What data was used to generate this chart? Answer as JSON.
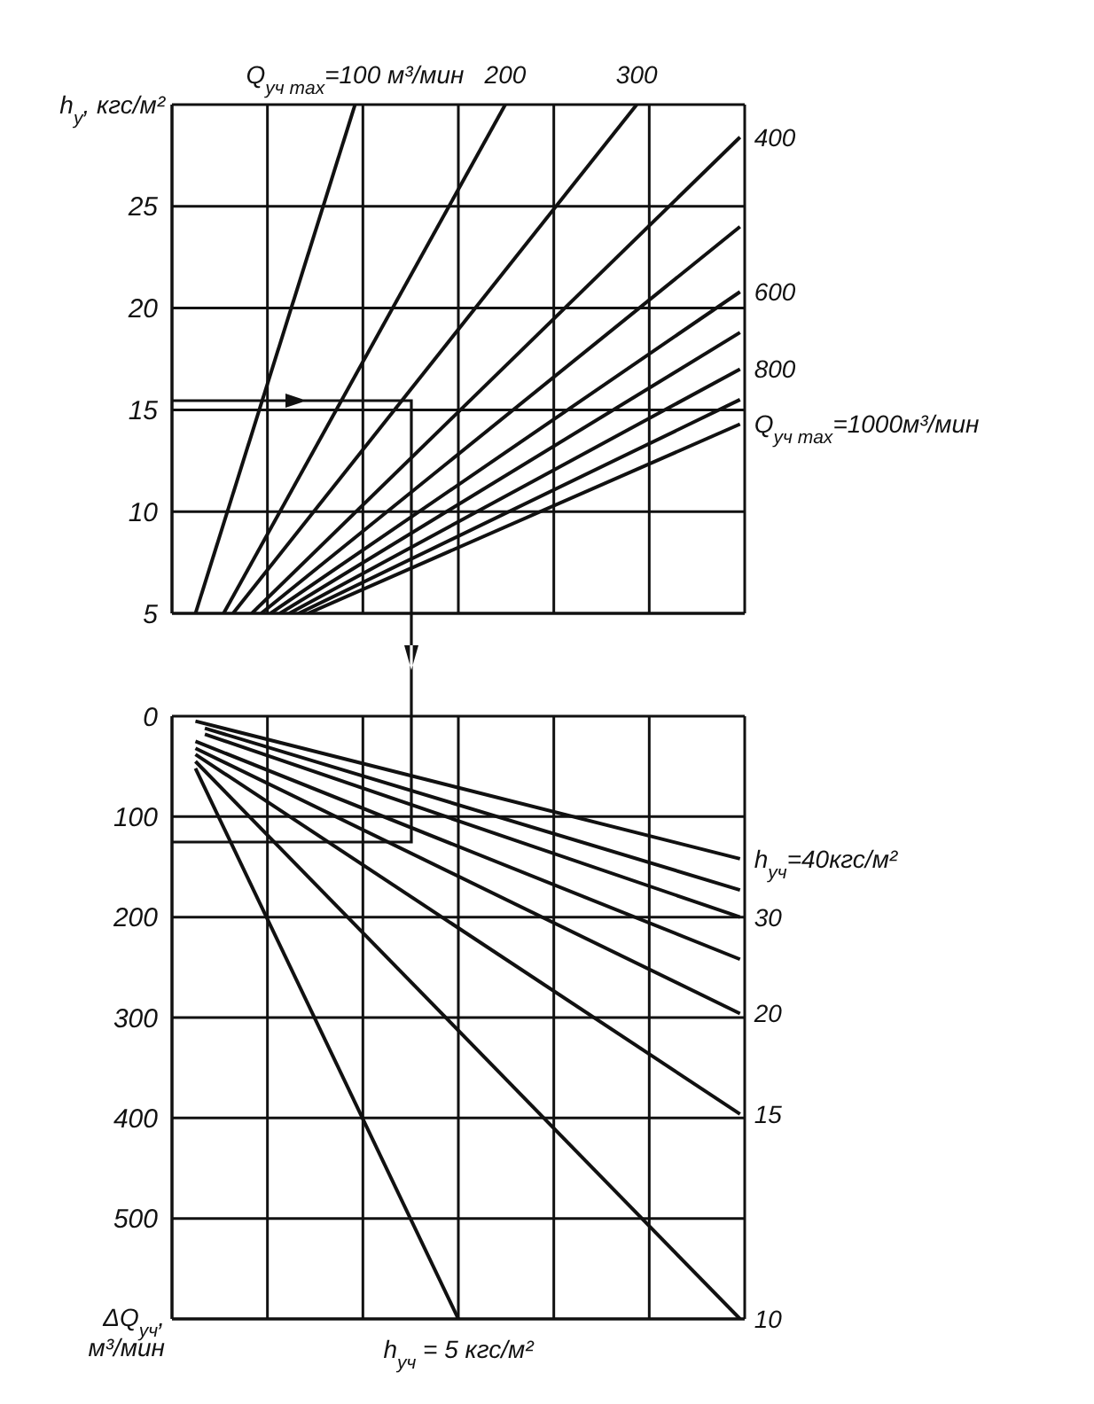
{
  "chart_data": [
    {
      "type": "line",
      "ylabel": "h$_{у}$, кгс/м²",
      "categories": [
        null,
        null,
        null,
        null,
        null,
        null,
        null,
        null,
        null,
        null,
        null,
        null,
        null,
        null,
        null,
        null,
        null,
        null,
        null,
        null,
        null,
        null,
        null,
        null,
        null,
        null,
        null,
        null,
        null,
        null,
        null,
        null,
        null,
        null,
        null,
        null,
        null,
        null,
        null,
        null,
        null,
        null,
        null,
        null,
        null,
        null,
        null,
        null,
        null,
        null,
        null,
        null,
        null,
        null,
        null,
        null,
        null,
        null,
        null,
        null,
        null
      ],
      "ylim": [
        5,
        30
      ],
      "yticks": [
        5,
        10,
        15,
        20,
        25
      ],
      "tick_labels": "y",
      "grid": true,
      "marker": "none",
      "line_style": "solid",
      "series": [
        {
          "name": "Q$_{уч max}$=100 м³/мин",
          "color": "#111111",
          "values": [
            null,
            null,
            5,
            null,
            null,
            null,
            null,
            null,
            null,
            null,
            null,
            null,
            null,
            null,
            null,
            null,
            null,
            null,
            null,
            30,
            null,
            null,
            null,
            null,
            null,
            null,
            null,
            null,
            null,
            null,
            null,
            null,
            null,
            null,
            null,
            null,
            null,
            null,
            null,
            null,
            null,
            null,
            null,
            null,
            null,
            null,
            null,
            null,
            null,
            null,
            null,
            null,
            null,
            null,
            null,
            null,
            null,
            null,
            null,
            null,
            null
          ]
        },
        {
          "name": "200",
          "color": "#111111",
          "values": [
            null,
            null,
            null,
            null,
            null,
            5,
            null,
            null,
            null,
            null,
            null,
            null,
            null,
            null,
            null,
            null,
            null,
            null,
            null,
            null,
            null,
            null,
            null,
            null,
            null,
            null,
            null,
            null,
            null,
            null,
            null,
            null,
            null,
            null,
            null,
            30,
            null,
            null,
            null,
            null,
            null,
            null,
            null,
            null,
            null,
            null,
            null,
            null,
            null,
            null,
            null,
            null,
            null,
            null,
            null,
            null,
            null,
            null,
            null,
            null,
            null
          ]
        },
        {
          "name": "300",
          "color": "#111111",
          "values": [
            null,
            null,
            null,
            null,
            null,
            null,
            5,
            null,
            null,
            null,
            null,
            null,
            null,
            null,
            null,
            null,
            null,
            null,
            null,
            null,
            null,
            null,
            null,
            null,
            null,
            null,
            null,
            null,
            null,
            null,
            null,
            null,
            null,
            null,
            null,
            null,
            null,
            null,
            null,
            null,
            null,
            null,
            null,
            null,
            null,
            null,
            null,
            null,
            null,
            30,
            null,
            null,
            null,
            null,
            null,
            null,
            null,
            null,
            null,
            null,
            null
          ]
        },
        {
          "name": "400",
          "color": "#111111",
          "values": [
            null,
            null,
            null,
            null,
            null,
            null,
            null,
            null,
            5,
            null,
            null,
            null,
            null,
            null,
            null,
            null,
            null,
            null,
            null,
            null,
            null,
            null,
            null,
            null,
            null,
            null,
            null,
            null,
            null,
            null,
            null,
            null,
            null,
            null,
            null,
            null,
            null,
            null,
            null,
            null,
            null,
            null,
            null,
            null,
            null,
            null,
            null,
            null,
            null,
            null,
            null,
            null,
            null,
            null,
            null,
            null,
            null,
            null,
            null,
            null,
            28.4
          ]
        },
        {
          "color": "#111111",
          "values": [
            null,
            null,
            null,
            null,
            null,
            null,
            null,
            null,
            null,
            5,
            null,
            null,
            null,
            null,
            null,
            null,
            null,
            null,
            null,
            null,
            null,
            null,
            null,
            null,
            null,
            null,
            null,
            null,
            null,
            null,
            null,
            null,
            null,
            null,
            null,
            null,
            null,
            null,
            null,
            null,
            null,
            null,
            null,
            null,
            null,
            null,
            null,
            null,
            null,
            null,
            null,
            null,
            null,
            null,
            null,
            null,
            null,
            null,
            null,
            null,
            24
          ]
        },
        {
          "name": "600",
          "color": "#111111",
          "values": [
            null,
            null,
            null,
            null,
            null,
            null,
            null,
            null,
            null,
            null,
            5,
            null,
            null,
            null,
            null,
            null,
            null,
            null,
            null,
            null,
            null,
            null,
            null,
            null,
            null,
            null,
            null,
            null,
            null,
            null,
            null,
            null,
            null,
            null,
            null,
            null,
            null,
            null,
            null,
            null,
            null,
            null,
            null,
            null,
            null,
            null,
            null,
            null,
            null,
            null,
            null,
            null,
            null,
            null,
            null,
            null,
            null,
            null,
            null,
            null,
            20.8
          ]
        },
        {
          "color": "#111111",
          "values": [
            null,
            null,
            null,
            null,
            null,
            null,
            null,
            null,
            null,
            null,
            null,
            5,
            null,
            null,
            null,
            null,
            null,
            null,
            null,
            null,
            null,
            null,
            null,
            null,
            null,
            null,
            null,
            null,
            null,
            null,
            null,
            null,
            null,
            null,
            null,
            null,
            null,
            null,
            null,
            null,
            null,
            null,
            null,
            null,
            null,
            null,
            null,
            null,
            null,
            null,
            null,
            null,
            null,
            null,
            null,
            null,
            null,
            null,
            null,
            null,
            18.8
          ]
        },
        {
          "name": "800",
          "color": "#111111",
          "values": [
            null,
            null,
            null,
            null,
            null,
            null,
            null,
            null,
            null,
            null,
            null,
            null,
            5,
            null,
            null,
            null,
            null,
            null,
            null,
            null,
            null,
            null,
            null,
            null,
            null,
            null,
            null,
            null,
            null,
            null,
            null,
            null,
            null,
            null,
            null,
            null,
            null,
            null,
            null,
            null,
            null,
            null,
            null,
            null,
            null,
            null,
            null,
            null,
            null,
            null,
            null,
            null,
            null,
            null,
            null,
            null,
            null,
            null,
            null,
            null,
            17
          ]
        },
        {
          "color": "#111111",
          "values": [
            null,
            null,
            null,
            null,
            null,
            null,
            null,
            null,
            null,
            null,
            null,
            null,
            null,
            5,
            null,
            null,
            null,
            null,
            null,
            null,
            null,
            null,
            null,
            null,
            null,
            null,
            null,
            null,
            null,
            null,
            null,
            null,
            null,
            null,
            null,
            null,
            null,
            null,
            null,
            null,
            null,
            null,
            null,
            null,
            null,
            null,
            null,
            null,
            null,
            null,
            null,
            null,
            null,
            null,
            null,
            null,
            null,
            null,
            null,
            null,
            15.5
          ]
        },
        {
          "name": "Q$_{уч max}$=1000м³/мин",
          "color": "#111111",
          "values": [
            null,
            null,
            null,
            null,
            null,
            null,
            null,
            null,
            null,
            null,
            null,
            null,
            null,
            null,
            5,
            null,
            null,
            null,
            null,
            null,
            null,
            null,
            null,
            null,
            null,
            null,
            null,
            null,
            null,
            null,
            null,
            null,
            null,
            null,
            null,
            null,
            null,
            null,
            null,
            null,
            null,
            null,
            null,
            null,
            null,
            null,
            null,
            null,
            null,
            null,
            null,
            null,
            null,
            null,
            null,
            null,
            null,
            null,
            null,
            null,
            14.3
          ]
        }
      ]
    },
    {
      "type": "line",
      "ylabel": "ΔQ$_{уч}$, м³/мин",
      "categories": [
        null,
        null,
        null,
        null,
        null,
        null,
        null,
        null,
        null,
        null,
        null,
        null,
        null,
        null,
        null,
        null,
        null,
        null,
        null,
        null,
        null,
        null,
        null,
        null,
        null,
        null,
        null,
        null,
        null,
        null,
        null,
        null,
        null,
        null,
        null,
        null,
        null,
        null,
        null,
        null,
        null,
        null,
        null,
        null,
        null,
        null,
        null,
        null,
        null,
        null,
        null,
        null,
        null,
        null,
        null,
        null,
        null,
        null,
        null,
        null,
        null
      ],
      "ylim": [
        600,
        0
      ],
      "yticks": [
        0,
        100,
        200,
        300,
        400,
        500
      ],
      "tick_labels": "y",
      "grid": true,
      "marker": "none",
      "line_style": "solid",
      "series": [
        {
          "name": "h$_{уч}$=40кгс/м²",
          "color": "#111111",
          "values": [
            null,
            null,
            5,
            null,
            null,
            null,
            null,
            null,
            null,
            null,
            null,
            null,
            null,
            null,
            null,
            null,
            null,
            null,
            null,
            null,
            null,
            null,
            null,
            null,
            null,
            null,
            null,
            null,
            null,
            null,
            null,
            null,
            null,
            null,
            null,
            null,
            null,
            null,
            null,
            null,
            null,
            null,
            null,
            null,
            null,
            null,
            null,
            null,
            null,
            null,
            null,
            null,
            null,
            null,
            null,
            null,
            null,
            null,
            null,
            null,
            142
          ]
        },
        {
          "color": "#111111",
          "values": [
            null,
            null,
            null,
            12,
            null,
            null,
            null,
            null,
            null,
            null,
            null,
            null,
            null,
            null,
            null,
            null,
            null,
            null,
            null,
            null,
            null,
            null,
            null,
            null,
            null,
            null,
            null,
            null,
            null,
            null,
            null,
            null,
            null,
            null,
            null,
            null,
            null,
            null,
            null,
            null,
            null,
            null,
            null,
            null,
            null,
            null,
            null,
            null,
            null,
            null,
            null,
            null,
            null,
            null,
            null,
            null,
            null,
            null,
            null,
            null,
            173
          ]
        },
        {
          "name": "30",
          "color": "#111111",
          "values": [
            null,
            null,
            null,
            18,
            null,
            null,
            null,
            null,
            null,
            null,
            null,
            null,
            null,
            null,
            null,
            null,
            null,
            null,
            null,
            null,
            null,
            null,
            null,
            null,
            null,
            null,
            null,
            null,
            null,
            null,
            null,
            null,
            null,
            null,
            null,
            null,
            null,
            null,
            null,
            null,
            null,
            null,
            null,
            null,
            null,
            null,
            null,
            null,
            null,
            null,
            null,
            null,
            null,
            null,
            null,
            null,
            null,
            null,
            null,
            null,
            200
          ]
        },
        {
          "color": "#111111",
          "values": [
            null,
            null,
            25,
            null,
            null,
            null,
            null,
            null,
            null,
            null,
            null,
            null,
            null,
            null,
            null,
            null,
            null,
            null,
            null,
            null,
            null,
            null,
            null,
            null,
            null,
            null,
            null,
            null,
            null,
            null,
            null,
            null,
            null,
            null,
            null,
            null,
            null,
            null,
            null,
            null,
            null,
            null,
            null,
            null,
            null,
            null,
            null,
            null,
            null,
            null,
            null,
            null,
            null,
            null,
            null,
            null,
            null,
            null,
            null,
            null,
            242
          ]
        },
        {
          "name": "20",
          "color": "#111111",
          "values": [
            null,
            null,
            32,
            null,
            null,
            null,
            null,
            null,
            null,
            null,
            null,
            null,
            null,
            null,
            null,
            null,
            null,
            null,
            null,
            null,
            null,
            null,
            null,
            null,
            null,
            null,
            null,
            null,
            null,
            null,
            null,
            null,
            null,
            null,
            null,
            null,
            null,
            null,
            null,
            null,
            null,
            null,
            null,
            null,
            null,
            null,
            null,
            null,
            null,
            null,
            null,
            null,
            null,
            null,
            null,
            null,
            null,
            null,
            null,
            null,
            296
          ]
        },
        {
          "name": "15",
          "color": "#111111",
          "values": [
            null,
            null,
            38,
            null,
            null,
            null,
            null,
            null,
            null,
            null,
            null,
            null,
            null,
            null,
            null,
            null,
            null,
            null,
            null,
            null,
            null,
            null,
            null,
            null,
            null,
            null,
            null,
            null,
            null,
            null,
            null,
            null,
            null,
            null,
            null,
            null,
            null,
            null,
            null,
            null,
            null,
            null,
            null,
            null,
            null,
            null,
            null,
            null,
            null,
            null,
            null,
            null,
            null,
            null,
            null,
            null,
            null,
            null,
            null,
            null,
            396
          ]
        },
        {
          "name": "10",
          "color": "#111111",
          "values": [
            null,
            null,
            45,
            null,
            null,
            null,
            null,
            null,
            null,
            null,
            null,
            null,
            null,
            null,
            null,
            null,
            null,
            null,
            null,
            null,
            null,
            null,
            null,
            null,
            null,
            null,
            null,
            null,
            null,
            null,
            null,
            null,
            null,
            null,
            null,
            null,
            null,
            null,
            null,
            null,
            null,
            null,
            null,
            null,
            null,
            null,
            null,
            null,
            null,
            null,
            null,
            null,
            null,
            null,
            null,
            null,
            null,
            null,
            null,
            null,
            600
          ]
        },
        {
          "name": "h$_{уч}$ = 5 кгс/м²",
          "color": "#111111",
          "values": [
            null,
            null,
            52,
            null,
            null,
            null,
            null,
            null,
            null,
            null,
            null,
            null,
            null,
            null,
            null,
            null,
            null,
            null,
            null,
            null,
            null,
            null,
            null,
            null,
            null,
            null,
            null,
            null,
            null,
            null,
            600,
            null,
            null,
            null,
            null,
            null,
            null,
            null,
            null,
            null,
            null,
            null,
            null,
            null,
            null,
            null,
            null,
            null,
            null,
            null,
            null,
            null,
            null,
            null,
            null,
            null,
            null,
            null,
            null,
            null,
            null
          ]
        }
      ]
    }
  ]
}
